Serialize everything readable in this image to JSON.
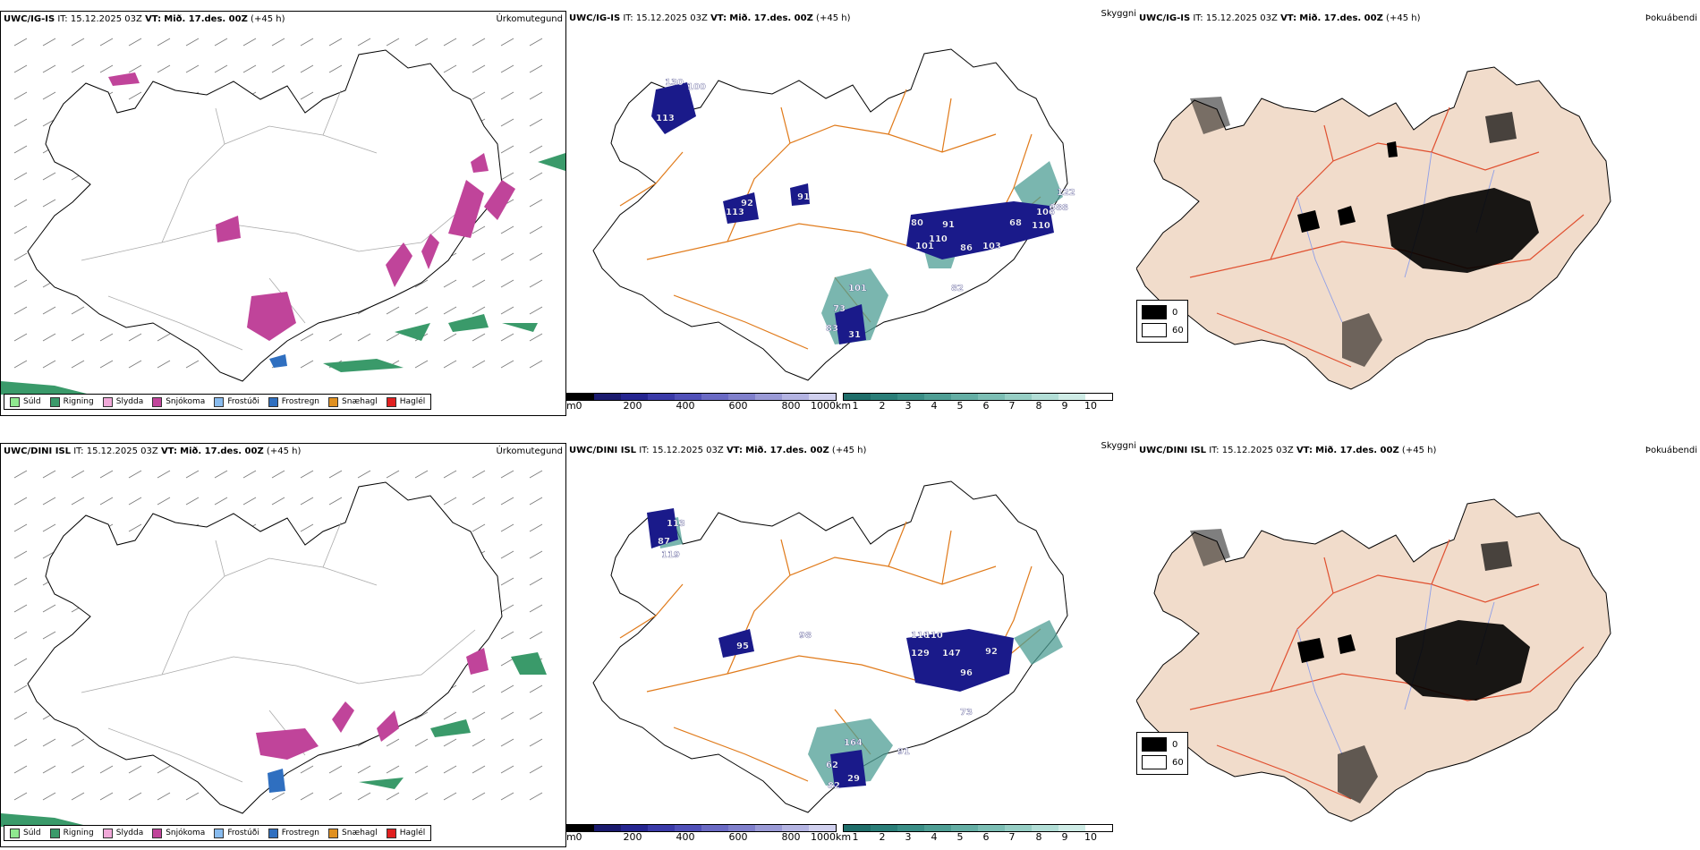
{
  "rows": [
    {
      "model": "UWC/IG-IS",
      "it_label": "IT:",
      "it_value": "15.12.2025 03Z",
      "vt_label": "VT:",
      "vt_value": "Mið. 17.des. 00Z",
      "lead": "(+45 h)"
    },
    {
      "model": "UWC/DINI ISL",
      "it_label": "IT:",
      "it_value": "15.12.2025 03Z",
      "vt_label": "VT:",
      "vt_value": "Mið. 17.des. 00Z",
      "lead": "(+45 h)"
    }
  ],
  "panel_titles": {
    "precip_type": "Úrkomutegund",
    "visibility": "Skyggni",
    "fog": "Þokuábendi"
  },
  "precip_legend": [
    {
      "label": "Súld",
      "color": "#8fe88f"
    },
    {
      "label": "Rigning",
      "color": "#3a9a6a"
    },
    {
      "label": "Slydda",
      "color": "#f0a8d8"
    },
    {
      "label": "Snjókoma",
      "color": "#c0449a"
    },
    {
      "label": "Frostúði",
      "color": "#88bbee"
    },
    {
      "label": "Frostregn",
      "color": "#2f6fc0"
    },
    {
      "label": "Snæhagl",
      "color": "#e09020"
    },
    {
      "label": "Haglél",
      "color": "#e02020"
    }
  ],
  "ceiling_bar": {
    "unit": "m",
    "ticks": [
      "0",
      "200",
      "400",
      "600",
      "800",
      "1000"
    ],
    "colors": [
      "#000000",
      "#1a1a6e",
      "#252590",
      "#3a3aa8",
      "#5050b8",
      "#6a6ac4",
      "#8080cc",
      "#9a9ad6",
      "#b4b4e2",
      "#d0d0ee"
    ]
  },
  "vis_bar": {
    "unit": "km",
    "ticks": [
      "1",
      "2",
      "3",
      "4",
      "5",
      "6",
      "7",
      "8",
      "9",
      "10"
    ],
    "colors": [
      "#1f6e6a",
      "#2a7e78",
      "#3a8e86",
      "#4e9e94",
      "#64aea4",
      "#7cbeb4",
      "#96cec4",
      "#b2ded6",
      "#cfece6",
      "#ffffff"
    ]
  },
  "fog_legend": [
    {
      "label": "0",
      "color": "#000000"
    },
    {
      "label": "60",
      "color": "#ffffff"
    }
  ],
  "map_labels": {
    "top": [
      "130",
      "100",
      "113",
      "92",
      "113",
      "91",
      "80",
      "91",
      "110",
      "101",
      "86",
      "103",
      "68",
      "106",
      "110",
      "388",
      "122",
      "82",
      "101",
      "73",
      "83",
      "31"
    ],
    "bottom": [
      "113",
      "87",
      "119",
      "98",
      "95",
      "110",
      "110",
      "129",
      "147",
      "92",
      "96",
      "73",
      "164",
      "91",
      "62",
      "82",
      "29"
    ]
  },
  "colors": {
    "coast": "#000000",
    "roads_orange": "#e07a1a",
    "roads_red": "#e05030",
    "rivers": "#8f9fe8",
    "land_fog": "#f1dccb",
    "rain": "#3a9a6a",
    "snow": "#c0449a",
    "ceiling": "#1a1a8a",
    "vis": "#4e9e94"
  }
}
